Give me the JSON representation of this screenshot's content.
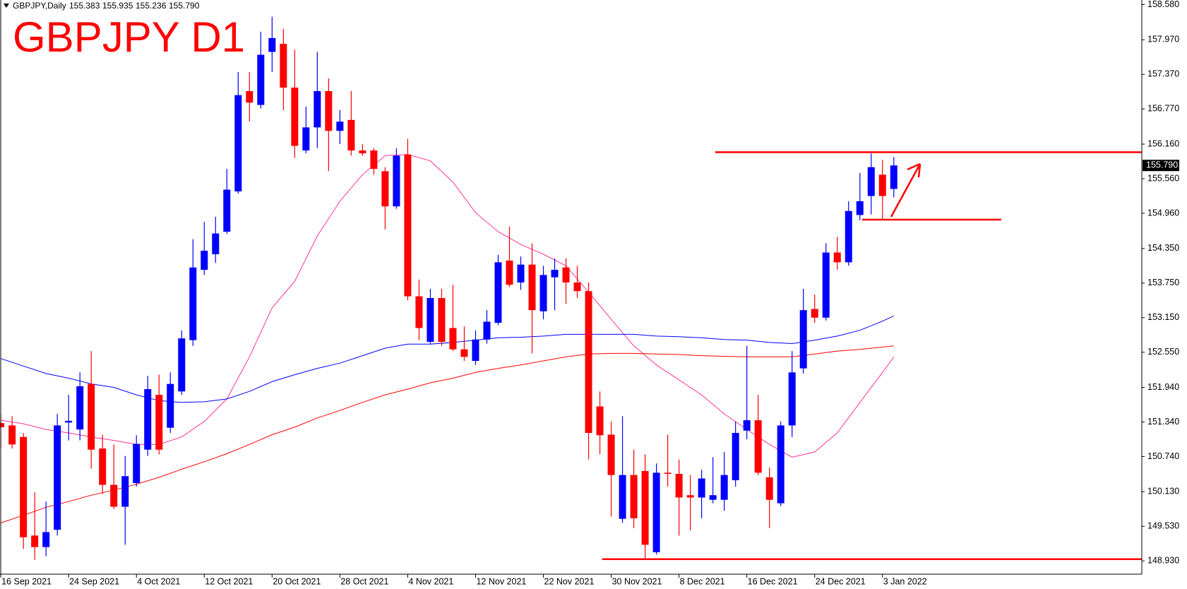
{
  "chart_data": {
    "type": "candlestick",
    "title": "GBPJPY D1",
    "header": {
      "symbol": "GBPJPY,Daily",
      "open": "155.383",
      "high": "155.935",
      "low": "155.236",
      "close": "155.790"
    },
    "up_color": "#0000ff",
    "down_color": "#ff0000",
    "categories": [
      "16 Sep 2021",
      null,
      null,
      null,
      null,
      null,
      "24 Sep 2021",
      null,
      null,
      null,
      null,
      null,
      "4 Oct 2021",
      null,
      null,
      null,
      null,
      null,
      "12 Oct 2021",
      null,
      null,
      null,
      null,
      null,
      "20 Oct 2021",
      null,
      null,
      null,
      null,
      null,
      "28 Oct 2021",
      null,
      null,
      null,
      null,
      null,
      "4 Nov 2021",
      null,
      null,
      null,
      null,
      null,
      "12 Nov 2021",
      null,
      null,
      null,
      null,
      null,
      "22 Nov 2021",
      null,
      null,
      null,
      null,
      null,
      "30 Nov 2021",
      null,
      null,
      null,
      null,
      null,
      "8 Dec 2021",
      null,
      null,
      null,
      null,
      null,
      "16 Dec 2021",
      null,
      null,
      null,
      null,
      null,
      "24 Dec 2021",
      null,
      null,
      null,
      null,
      null,
      "3 Jan 2022",
      null
    ],
    "open": [
      151.32,
      151.28,
      151.08,
      149.37,
      149.17,
      149.47,
      151.33,
      151.21,
      152.0,
      150.88,
      150.25,
      149.87,
      150.28,
      150.86,
      151.81,
      151.24,
      151.87,
      152.76,
      153.98,
      154.25,
      154.64,
      155.34,
      157.08,
      156.84,
      157.76,
      157.9,
      157.14,
      156.05,
      156.45,
      157.08,
      156.39,
      156.58,
      156.05,
      156.05,
      155.69,
      155.08,
      155.98,
      153.52,
      152.73,
      153.49,
      152.97,
      152.6,
      152.4,
      152.77,
      153.06,
      154.14,
      153.76,
      154.07,
      153.26,
      153.85,
      154.02,
      153.76,
      153.61,
      151.61,
      151.12,
      149.66,
      150.42,
      150.49,
      149.08,
      150.46,
      150.44,
      150.07,
      150.03,
      149.99,
      149.99,
      150.33,
      151.19,
      151.37,
      150.38,
      149.93,
      151.28,
      152.27,
      153.3,
      153.15,
      154.28,
      154.11,
      154.93,
      155.26,
      155.63,
      155.383
    ],
    "high": [
      151.48,
      151.44,
      151.15,
      150.12,
      149.96,
      151.48,
      151.81,
      152.2,
      152.57,
      151.12,
      150.95,
      150.75,
      151.11,
      152.14,
      152.16,
      152.2,
      152.93,
      154.51,
      154.81,
      154.9,
      155.73,
      157.41,
      157.41,
      158.11,
      158.37,
      158.16,
      157.8,
      156.81,
      157.76,
      157.3,
      156.75,
      157.08,
      156.16,
      156.09,
      155.76,
      156.09,
      156.25,
      153.81,
      153.65,
      153.65,
      153.72,
      153.0,
      152.93,
      153.28,
      154.24,
      154.73,
      154.21,
      154.44,
      154.05,
      154.18,
      154.18,
      154.05,
      153.76,
      151.87,
      151.35,
      151.44,
      150.86,
      150.78,
      150.62,
      151.12,
      150.69,
      150.42,
      150.51,
      150.73,
      150.82,
      151.35,
      152.66,
      151.81,
      150.55,
      151.35,
      152.57,
      153.65,
      153.55,
      154.44,
      154.55,
      155.17,
      155.66,
      156.0,
      155.89,
      155.935
    ],
    "low": [
      150.88,
      150.88,
      149.14,
      148.95,
      149.01,
      149.37,
      151.02,
      151.02,
      150.53,
      150.09,
      149.83,
      149.21,
      150.22,
      150.75,
      150.78,
      151.15,
      151.81,
      152.66,
      153.89,
      154.1,
      154.6,
      155.3,
      156.55,
      156.78,
      157.41,
      156.75,
      155.92,
      156.0,
      156.09,
      155.69,
      156.16,
      155.96,
      155.96,
      155.63,
      154.68,
      155.04,
      153.45,
      152.76,
      152.7,
      152.66,
      152.57,
      152.4,
      152.33,
      152.7,
      153.02,
      153.68,
      153.63,
      152.53,
      153.12,
      153.28,
      153.39,
      153.49,
      150.69,
      150.78,
      149.7,
      149.59,
      149.5,
      148.97,
      149.04,
      150.22,
      149.37,
      149.46,
      149.67,
      149.93,
      149.8,
      150.22,
      151.04,
      150.42,
      149.5,
      149.88,
      151.08,
      152.18,
      153.06,
      153.1,
      153.98,
      154.05,
      154.84,
      154.94,
      154.84,
      155.236
    ],
    "close": [
      151.25,
      150.95,
      149.34,
      149.17,
      149.43,
      151.28,
      151.36,
      151.96,
      150.86,
      150.25,
      149.87,
      150.4,
      150.96,
      151.91,
      150.86,
      152.0,
      152.79,
      154.02,
      154.31,
      154.61,
      155.37,
      157.01,
      156.88,
      157.71,
      158.0,
      157.14,
      156.13,
      156.45,
      157.08,
      156.39,
      156.55,
      156.05,
      156.0,
      155.73,
      155.08,
      155.96,
      153.52,
      152.97,
      153.49,
      152.73,
      152.6,
      152.47,
      152.77,
      153.08,
      154.11,
      153.72,
      154.07,
      153.28,
      153.89,
      153.98,
      153.76,
      153.61,
      151.15,
      151.11,
      150.42,
      150.42,
      149.67,
      149.21,
      150.46,
      150.44,
      150.03,
      150.03,
      150.36,
      150.07,
      150.42,
      151.15,
      151.37,
      150.46,
      149.99,
      151.28,
      152.2,
      153.28,
      153.15,
      154.28,
      154.11,
      155.0,
      155.17,
      155.76,
      155.26,
      155.79
    ],
    "lines": [
      {
        "color": "#ff3399",
        "x": [
          0,
          2,
          4,
          6,
          8,
          10,
          12,
          14,
          16,
          18,
          20,
          22,
          24,
          26,
          28,
          30,
          32,
          34,
          36,
          38,
          40,
          42,
          44,
          46,
          48,
          50,
          52,
          54,
          56,
          58,
          60,
          62,
          64,
          66,
          68,
          70,
          72,
          74,
          76,
          78,
          79
        ],
        "values": [
          151.37,
          151.31,
          151.21,
          151.15,
          151.08,
          151.02,
          150.95,
          150.95,
          151.08,
          151.35,
          151.74,
          152.47,
          153.32,
          153.78,
          154.57,
          155.17,
          155.63,
          155.96,
          155.98,
          155.87,
          155.5,
          154.97,
          154.64,
          154.42,
          154.25,
          154.05,
          153.59,
          153.12,
          152.66,
          152.33,
          152.07,
          151.81,
          151.48,
          151.21,
          150.95,
          150.73,
          150.82,
          151.15,
          151.68,
          152.2,
          152.47
        ]
      },
      {
        "color": "#0000ff",
        "x": [
          0,
          2,
          4,
          6,
          8,
          10,
          12,
          14,
          16,
          18,
          20,
          22,
          24,
          26,
          28,
          30,
          32,
          34,
          36,
          38,
          40,
          42,
          44,
          46,
          48,
          50,
          52,
          54,
          56,
          58,
          60,
          62,
          64,
          66,
          68,
          70,
          72,
          74,
          76,
          78,
          79
        ],
        "values": [
          152.44,
          152.31,
          152.18,
          152.1,
          152.0,
          151.94,
          151.81,
          151.71,
          151.68,
          151.69,
          151.74,
          151.87,
          152.04,
          152.16,
          152.27,
          152.36,
          152.49,
          152.62,
          152.69,
          152.69,
          152.72,
          152.76,
          152.8,
          152.81,
          152.83,
          152.86,
          152.86,
          152.86,
          152.86,
          152.83,
          152.82,
          152.8,
          152.77,
          152.76,
          152.72,
          152.7,
          152.76,
          152.83,
          152.93,
          153.09,
          153.18
        ]
      },
      {
        "color": "#ff0000",
        "x": [
          0,
          2,
          4,
          6,
          8,
          10,
          12,
          14,
          16,
          18,
          20,
          22,
          24,
          26,
          28,
          30,
          32,
          34,
          36,
          38,
          40,
          42,
          44,
          46,
          48,
          50,
          52,
          54,
          56,
          58,
          60,
          62,
          64,
          66,
          68,
          70,
          72,
          74,
          76,
          78,
          79
        ],
        "values": [
          149.59,
          149.72,
          149.86,
          149.96,
          150.07,
          150.16,
          150.26,
          150.38,
          150.52,
          150.65,
          150.79,
          150.95,
          151.12,
          151.25,
          151.41,
          151.54,
          151.68,
          151.81,
          151.91,
          152.02,
          152.1,
          152.2,
          152.27,
          152.33,
          152.4,
          152.47,
          152.52,
          152.53,
          152.53,
          152.52,
          152.51,
          152.49,
          152.48,
          152.47,
          152.47,
          152.47,
          152.52,
          152.57,
          152.6,
          152.64,
          152.66
        ]
      }
    ],
    "hlines": [
      {
        "value": 156.02,
        "start": 63.2,
        "end": 101,
        "color": "#ff0000"
      },
      {
        "value": 154.85,
        "start": 76.2,
        "end": 88.5,
        "color": "#ff0000"
      },
      {
        "value": 148.96,
        "start": 53.2,
        "end": 101,
        "color": "#ff0000"
      }
    ],
    "xlim": [
      -0.07,
      100.94
    ],
    "ylim": [
      148.7,
      158.66
    ],
    "yticks": [
      {
        "value": 158.58,
        "label": "158.580"
      },
      {
        "value": 157.97,
        "label": "157.970"
      },
      {
        "value": 157.37,
        "label": "157.370"
      },
      {
        "value": 156.77,
        "label": "156.770"
      },
      {
        "value": 156.16,
        "label": "156.160"
      },
      {
        "value": 155.56,
        "label": "155.560"
      },
      {
        "value": 154.96,
        "label": "154.960"
      },
      {
        "value": 154.35,
        "label": "154.350"
      },
      {
        "value": 153.75,
        "label": "153.750"
      },
      {
        "value": 153.15,
        "label": "153.150"
      },
      {
        "value": 152.55,
        "label": "152.550"
      },
      {
        "value": 151.94,
        "label": "151.940"
      },
      {
        "value": 151.34,
        "label": "151.340"
      },
      {
        "value": 150.74,
        "label": "150.740"
      },
      {
        "value": 150.13,
        "label": "150.130"
      },
      {
        "value": 149.53,
        "label": "149.530"
      },
      {
        "value": 148.93,
        "label": "148.930"
      }
    ]
  }
}
